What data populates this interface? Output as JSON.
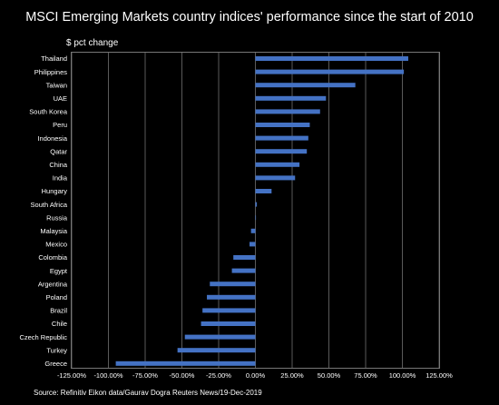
{
  "header": {
    "title": "MSCI Emerging Markets country indices' performance since the start of 2010",
    "subtitle": "$ pct change"
  },
  "footer": {
    "source": "Source: Refinitiv Eikon data/Gaurav Dogra Reuters News/19-Dec-2019"
  },
  "colors": {
    "bar": "#4472C4",
    "background": "#000000",
    "text": "#FFFFFF",
    "grid": "#5A5A5A"
  },
  "chart_data": {
    "type": "bar",
    "orientation": "horizontal",
    "title": "MSCI Emerging Markets country indices' performance since the start of 2010",
    "ylabel": "$ pct change",
    "categories": [
      "Thailand",
      "Philippines",
      "Taiwan",
      "UAE",
      "South Korea",
      "Peru",
      "Indonesia",
      "Qatar",
      "China",
      "India",
      "Hungary",
      "South Africa",
      "Russia",
      "Malaysia",
      "Mexico",
      "Colombia",
      "Egypt",
      "Argentina",
      "Poland",
      "Brazil",
      "Chile",
      "Czech Republic",
      "Turkey",
      "Greece"
    ],
    "values": [
      104,
      101,
      68,
      48,
      44,
      37,
      36,
      35,
      30,
      27,
      11,
      1,
      0,
      -3,
      -4,
      -15,
      -16,
      -31,
      -33,
      -36,
      -37,
      -48,
      -53,
      -95
    ],
    "xlim": [
      -125,
      125
    ],
    "xticks": [
      "-125.00%",
      "-100.00%",
      "-75.00%",
      "-50.00%",
      "-25.00%",
      "0.00%",
      "25.00%",
      "50.00%",
      "75.00%",
      "100.00%",
      "125.00%"
    ],
    "grid": true,
    "legend": "none"
  }
}
